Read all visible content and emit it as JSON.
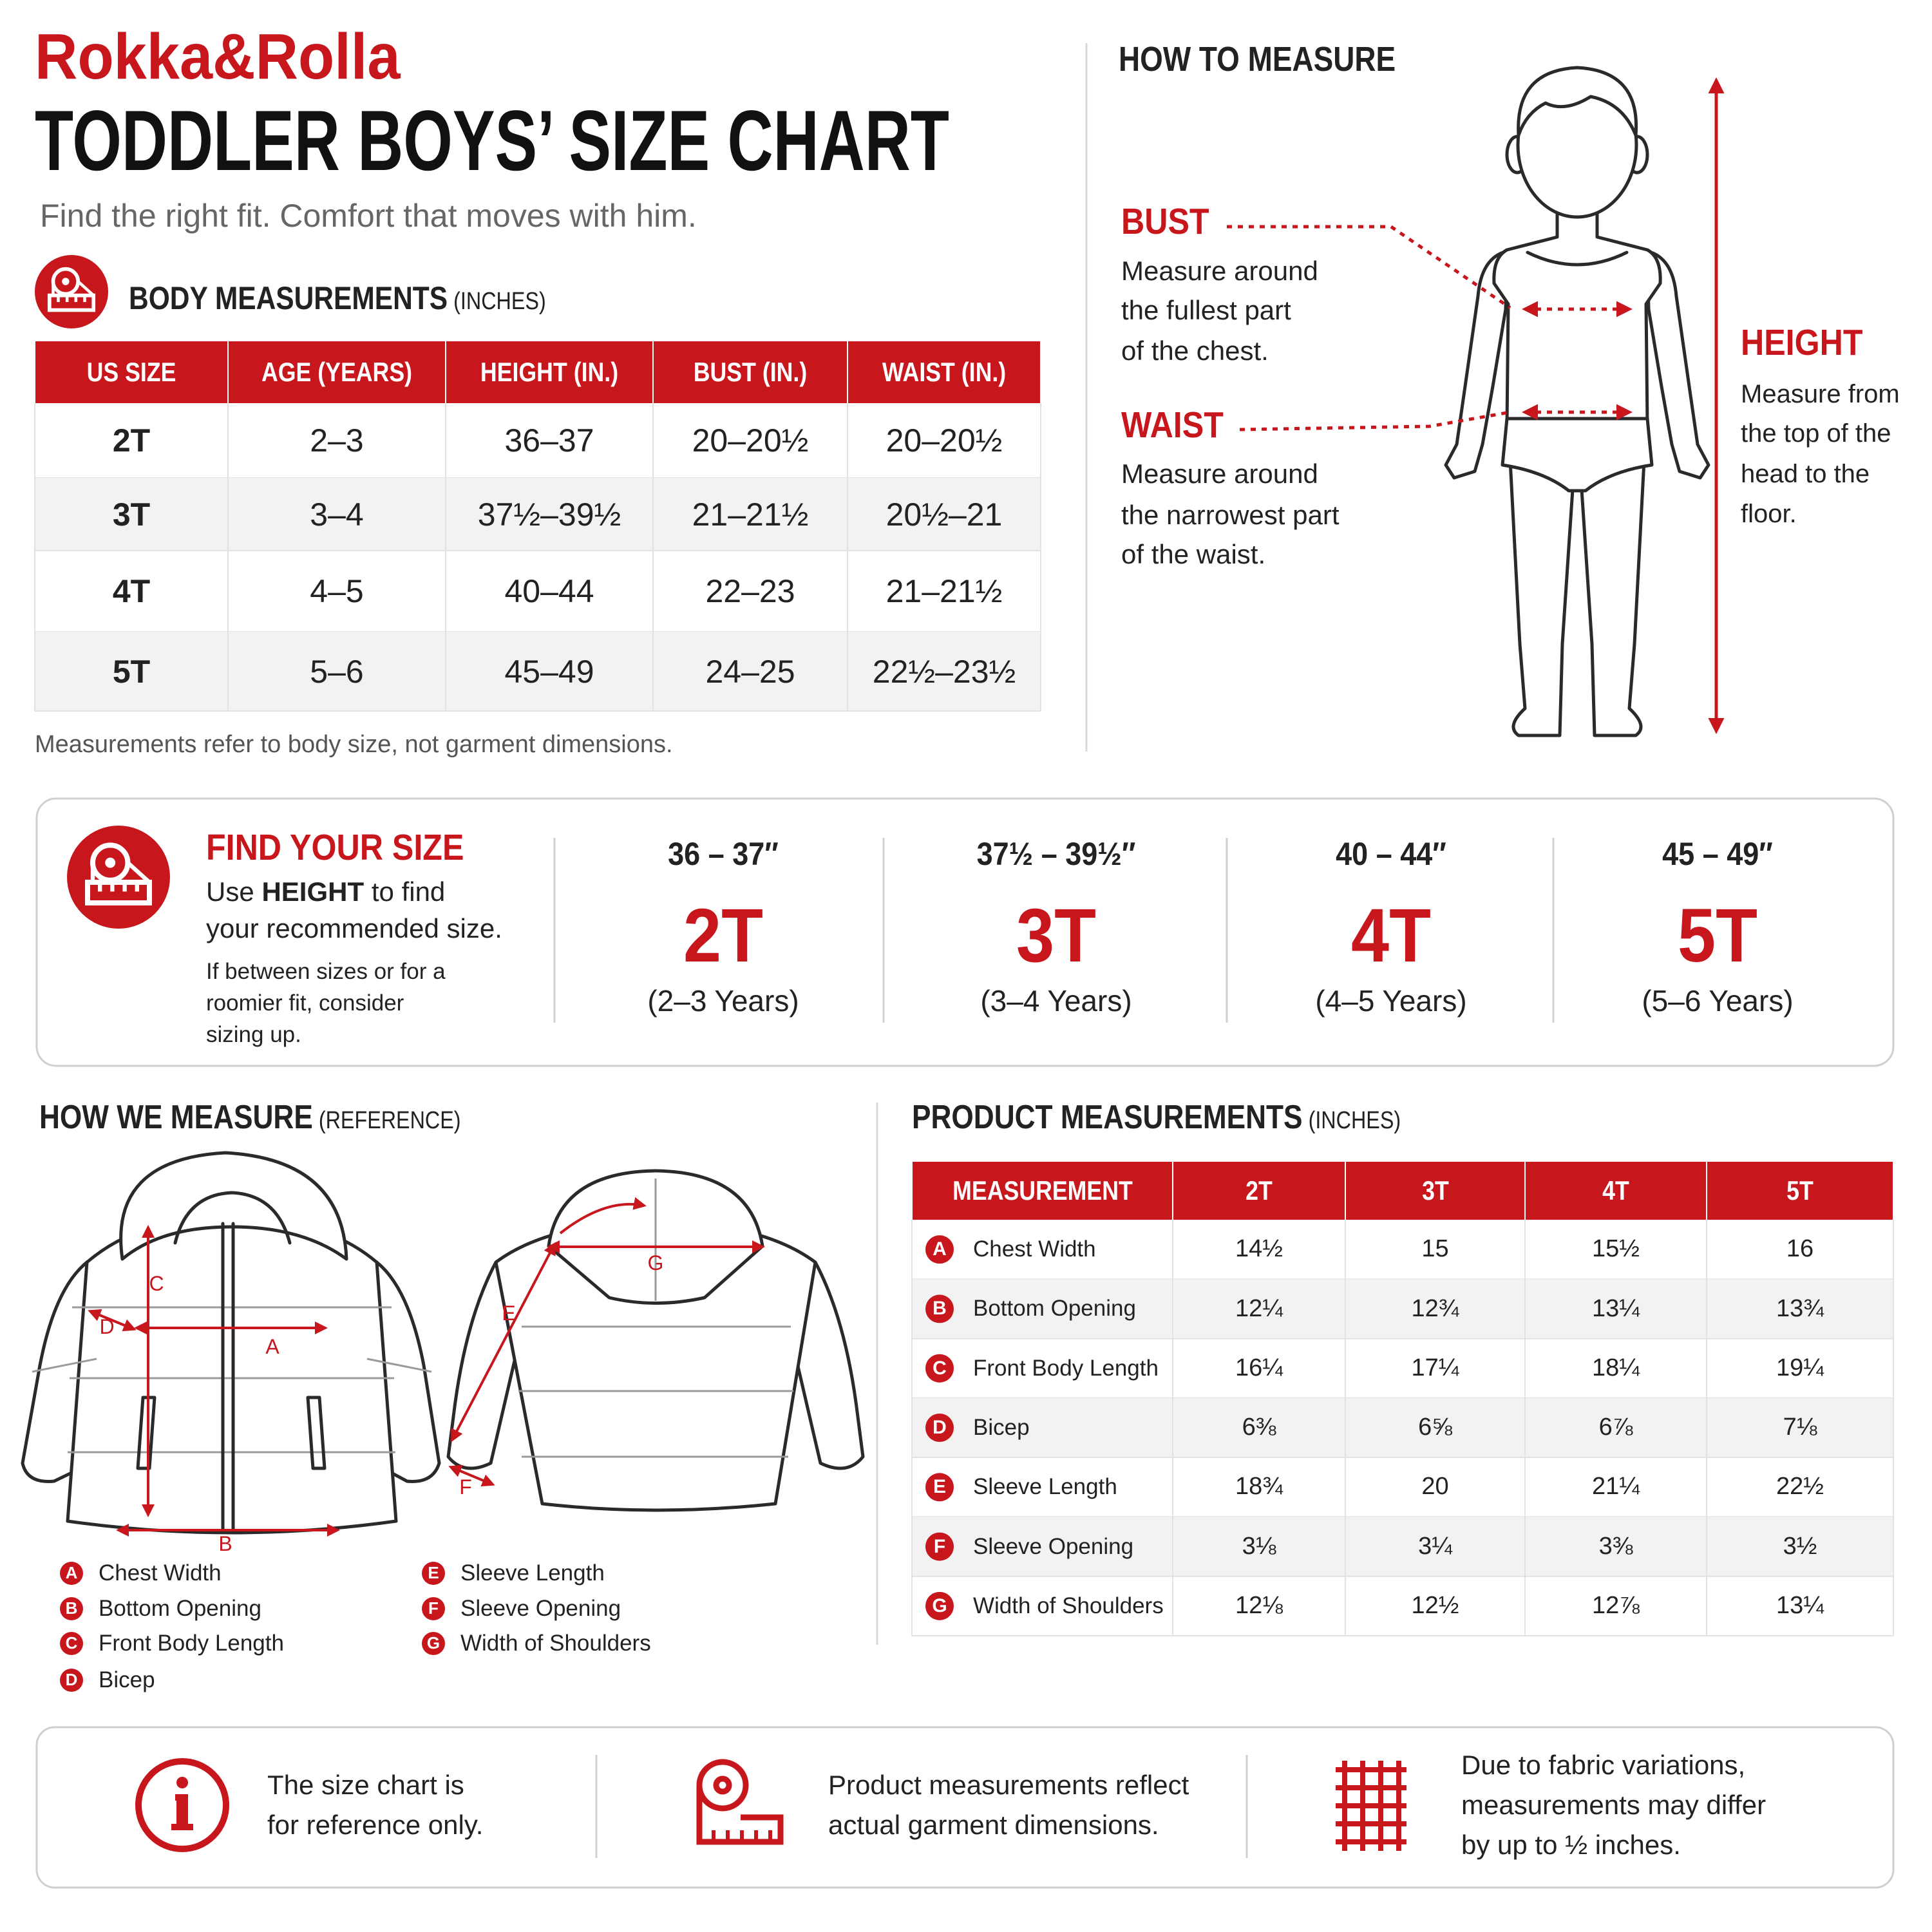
{
  "brand": "Rokka&Rolla",
  "title": "TODDLER BOYS’ SIZE CHART",
  "subtitle": "Find the right fit. Comfort that moves with him.",
  "body_measurements": {
    "title": "BODY MEASUREMENTS",
    "unit": "(INCHES)",
    "headers": [
      "US SIZE",
      "AGE (YEARS)",
      "HEIGHT (IN.)",
      "BUST (IN.)",
      "WAIST (IN.)"
    ],
    "rows": [
      [
        "2T",
        "2–3",
        "36–37",
        "20–20½",
        "20–20½"
      ],
      [
        "3T",
        "3–4",
        "37½–39½",
        "21–21½",
        "20½–21"
      ],
      [
        "4T",
        "4–5",
        "40–44",
        "22–23",
        "21–21½"
      ],
      [
        "5T",
        "5–6",
        "45–49",
        "24–25",
        "22½–23½"
      ]
    ],
    "note": "Measurements refer to body size, not garment dimensions."
  },
  "how_to_measure": {
    "title": "HOW TO MEASURE",
    "items": [
      {
        "label": "BUST",
        "lines": [
          "Measure around",
          "the fullest part",
          "of the chest."
        ]
      },
      {
        "label": "WAIST",
        "lines": [
          "Measure around",
          "the narrowest part",
          "of the waist."
        ]
      },
      {
        "label": "HEIGHT",
        "lines": [
          "Measure from",
          "the top of the",
          "head to the",
          "floor."
        ]
      }
    ]
  },
  "find_your_size": {
    "title": "FIND YOUR SIZE",
    "instruction": [
      [
        "Use",
        "HEIGHT",
        "to find"
      ],
      [
        "your recommended size."
      ]
    ],
    "tip": [
      "If between sizes or for a",
      "roomier fit, consider",
      "sizing up."
    ],
    "sizes": [
      {
        "height": "36 – 37″",
        "size": "2T",
        "age": "(2–3 Years)"
      },
      {
        "height": "37½ – 39½″",
        "size": "3T",
        "age": "(3–4 Years)"
      },
      {
        "height": "40 – 44″",
        "size": "4T",
        "age": "(4–5 Years)"
      },
      {
        "height": "45 – 49″",
        "size": "5T",
        "age": "(5–6 Years)"
      }
    ]
  },
  "how_we_measure": {
    "title": "HOW WE MEASURE",
    "note": "(REFERENCE)",
    "legend": [
      {
        "letter": "A",
        "label": "Chest Width"
      },
      {
        "letter": "B",
        "label": "Bottom Opening"
      },
      {
        "letter": "C",
        "label": "Front Body Length"
      },
      {
        "letter": "D",
        "label": "Bicep"
      },
      {
        "letter": "E",
        "label": "Sleeve Length"
      },
      {
        "letter": "F",
        "label": "Sleeve Opening"
      },
      {
        "letter": "G",
        "label": "Width of Shoulders"
      }
    ]
  },
  "product_measurements": {
    "title": "PRODUCT MEASUREMENTS",
    "unit": "(INCHES)",
    "headers": [
      "MEASUREMENT",
      "2T",
      "3T",
      "4T",
      "5T"
    ],
    "rows": [
      {
        "letter": "A",
        "name": "Chest Width",
        "values": [
          "14½",
          "15",
          "15½",
          "16"
        ]
      },
      {
        "letter": "B",
        "name": "Bottom Opening",
        "values": [
          "12¼",
          "12¾",
          "13¼",
          "13¾"
        ]
      },
      {
        "letter": "C",
        "name": "Front Body Length",
        "values": [
          "16¼",
          "17¼",
          "18¼",
          "19¼"
        ]
      },
      {
        "letter": "D",
        "name": "Bicep",
        "values": [
          "6⅜",
          "6⅝",
          "6⅞",
          "7⅛"
        ]
      },
      {
        "letter": "E",
        "name": "Sleeve Length",
        "values": [
          "18¾",
          "20",
          "21¼",
          "22½"
        ]
      },
      {
        "letter": "F",
        "name": "Sleeve Opening",
        "values": [
          "3⅛",
          "3¼",
          "3⅜",
          "3½"
        ]
      },
      {
        "letter": "G",
        "name": "Width of Shoulders",
        "values": [
          "12⅛",
          "12½",
          "12⅞",
          "13¼"
        ]
      }
    ]
  },
  "footer": [
    {
      "lines": [
        "The size chart is",
        "for reference only."
      ]
    },
    {
      "lines": [
        "Product measurements reflect",
        "actual garment dimensions."
      ]
    },
    {
      "lines": [
        "Due to fabric variations,",
        "measurements may differ",
        "by up to ½ inches."
      ]
    }
  ]
}
